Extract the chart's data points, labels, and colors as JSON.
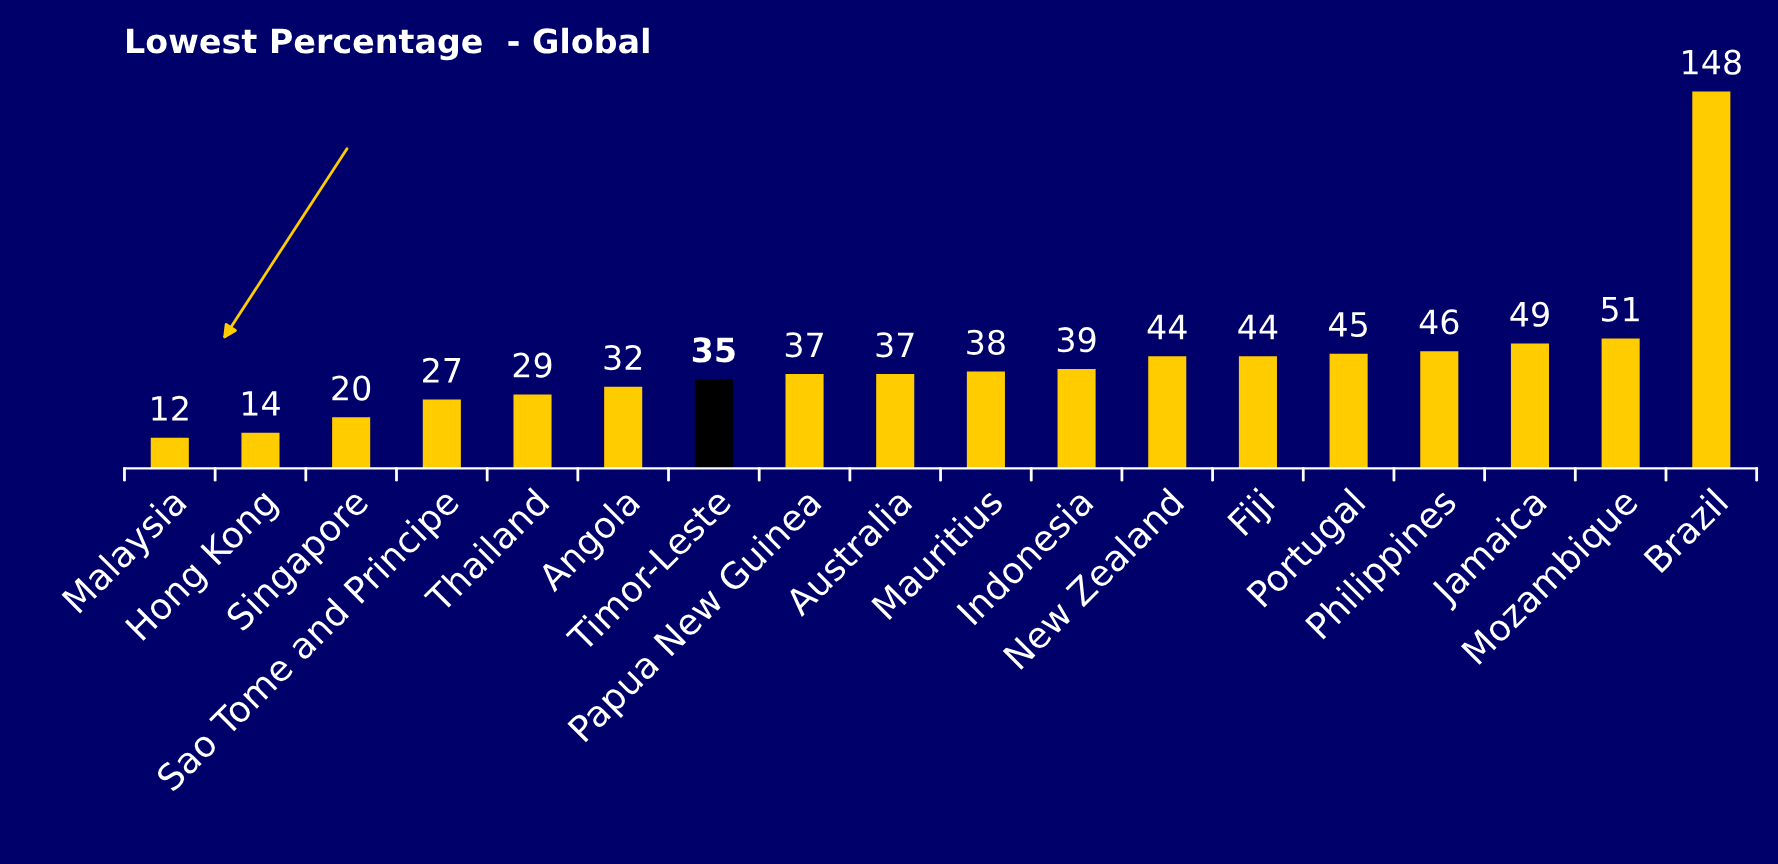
{
  "chart_data": {
    "type": "bar",
    "categories": [
      "Malaysia",
      "Hong Kong",
      "Singapore",
      "Sao Tome and Principe",
      "Thailand",
      "Angola",
      "Timor-Leste",
      "Papua New Guinea",
      "Australia",
      "Mauritius",
      "Indonesia",
      "New Zealand",
      "Fiji",
      "Portugal",
      "Philippines",
      "Jamaica",
      "Mozambique",
      "Brazil"
    ],
    "values": [
      12,
      14,
      20,
      27,
      29,
      32,
      35,
      37,
      37,
      38,
      39,
      44,
      44,
      45,
      46,
      49,
      51,
      148
    ],
    "colors": [
      "#ffcc00",
      "#ffcc00",
      "#ffcc00",
      "#ffcc00",
      "#ffcc00",
      "#ffcc00",
      "#000000",
      "#ffcc00",
      "#ffcc00",
      "#ffcc00",
      "#ffcc00",
      "#ffcc00",
      "#ffcc00",
      "#ffcc00",
      "#ffcc00",
      "#ffcc00",
      "#ffcc00",
      "#ffcc00"
    ],
    "data_labels": true,
    "annotations": [
      "Lowest Percentage  - Global"
    ]
  }
}
